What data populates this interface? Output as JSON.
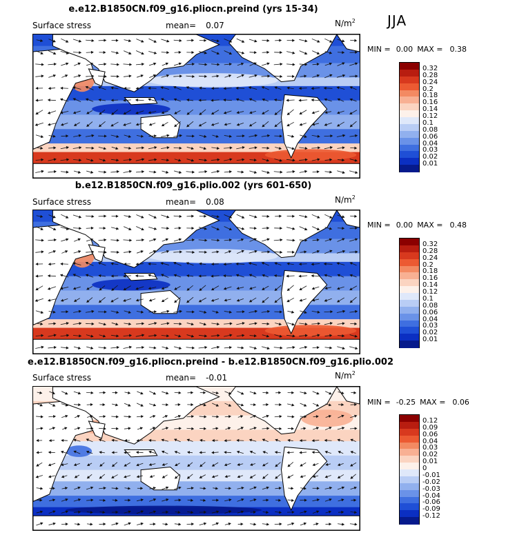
{
  "season": "JJA",
  "colors": {
    "land": "#ffffff",
    "coast": "#000000",
    "arrow": "#111111"
  },
  "panels": [
    {
      "title": "e.e12.B1850CN.f09_g16.pliocn.preind (yrs 15-34)",
      "variable": "Surface stress",
      "mean_label": "mean=",
      "mean_value": "0.07",
      "units": "N/m",
      "units_exp": "2",
      "min_label": "MIN =",
      "min_value": "0.00",
      "max_label": "MAX =",
      "max_value": "0.38",
      "levels": [
        "0.32",
        "0.28",
        "0.24",
        "0.2",
        "0.18",
        "0.16",
        "0.14",
        "0.12",
        "0.1",
        "0.08",
        "0.06",
        "0.04",
        "0.03",
        "0.02",
        "0.01"
      ],
      "colorbar": [
        "#8b0000",
        "#b81d10",
        "#d8391e",
        "#ec5a32",
        "#f38a62",
        "#f8b093",
        "#fbd4c1",
        "#fdf1ea",
        "#dfe8fa",
        "#b9cdf5",
        "#91b0ee",
        "#6a92e8",
        "#3f6fe0",
        "#1f4fd6",
        "#0b2fc2",
        "#061a8c"
      ],
      "field_style": "base"
    },
    {
      "title": "b.e12.B1850CN.f09_g16.plio.002 (yrs 601-650)",
      "variable": "Surface stress",
      "mean_label": "mean=",
      "mean_value": "0.08",
      "units": "N/m",
      "units_exp": "2",
      "min_label": "MIN =",
      "min_value": "0.00",
      "max_label": "MAX =",
      "max_value": "0.48",
      "levels": [
        "0.32",
        "0.28",
        "0.24",
        "0.2",
        "0.18",
        "0.16",
        "0.14",
        "0.12",
        "0.1",
        "0.08",
        "0.06",
        "0.04",
        "0.03",
        "0.02",
        "0.01"
      ],
      "colorbar": [
        "#8b0000",
        "#b81d10",
        "#d8391e",
        "#ec5a32",
        "#f38a62",
        "#f8b093",
        "#fbd4c1",
        "#fdf1ea",
        "#dfe8fa",
        "#b9cdf5",
        "#91b0ee",
        "#6a92e8",
        "#3f6fe0",
        "#1f4fd6",
        "#0b2fc2",
        "#061a8c"
      ],
      "field_style": "base"
    },
    {
      "title": "e.e12.B1850CN.f09_g16.pliocn.preind - b.e12.B1850CN.f09_g16.plio.002",
      "variable": "Surface stress",
      "mean_label": "mean=",
      "mean_value": "-0.01",
      "units": "N/m",
      "units_exp": "2",
      "min_label": "MIN =",
      "min_value": "-0.25",
      "max_label": "MAX =",
      "max_value": "0.06",
      "levels": [
        "0.12",
        "0.09",
        "0.06",
        "0.04",
        "0.03",
        "0.02",
        "0.01",
        "0",
        "-0.01",
        "-0.02",
        "-0.03",
        "-0.04",
        "-0.06",
        "-0.09",
        "-0.12"
      ],
      "colorbar": [
        "#8b0000",
        "#b81d10",
        "#d8391e",
        "#ec5a32",
        "#f38a62",
        "#f8b093",
        "#fbd4c1",
        "#fdf1ea",
        "#dfe8fa",
        "#b9cdf5",
        "#91b0ee",
        "#6a92e8",
        "#3f6fe0",
        "#1f4fd6",
        "#0b2fc2",
        "#061a8c"
      ],
      "field_style": "diff"
    }
  ],
  "chart_data": [
    {
      "type": "heatmap",
      "title": "e.e12.B1850CN.f09_g16.pliocn.preind (yrs 15-34)",
      "variable": "Surface stress",
      "units": "N/m2",
      "season": "JJA",
      "mean": 0.07,
      "min": 0.0,
      "max": 0.38,
      "contour_levels": [
        0.01,
        0.02,
        0.03,
        0.04,
        0.06,
        0.08,
        0.1,
        0.12,
        0.14,
        0.16,
        0.18,
        0.2,
        0.24,
        0.28,
        0.32
      ],
      "overlay": "wind stress vectors"
    },
    {
      "type": "heatmap",
      "title": "b.e12.B1850CN.f09_g16.plio.002 (yrs 601-650)",
      "variable": "Surface stress",
      "units": "N/m2",
      "season": "JJA",
      "mean": 0.08,
      "min": 0.0,
      "max": 0.48,
      "contour_levels": [
        0.01,
        0.02,
        0.03,
        0.04,
        0.06,
        0.08,
        0.1,
        0.12,
        0.14,
        0.16,
        0.18,
        0.2,
        0.24,
        0.28,
        0.32
      ],
      "overlay": "wind stress vectors"
    },
    {
      "type": "heatmap",
      "title": "e.e12.B1850CN.f09_g16.pliocn.preind - b.e12.B1850CN.f09_g16.plio.002",
      "variable": "Surface stress",
      "units": "N/m2",
      "season": "JJA",
      "mean": -0.01,
      "min": -0.25,
      "max": 0.06,
      "contour_levels": [
        -0.12,
        -0.09,
        -0.06,
        -0.04,
        -0.03,
        -0.02,
        -0.01,
        0,
        0.01,
        0.02,
        0.03,
        0.04,
        0.06,
        0.09,
        0.12
      ],
      "overlay": "wind stress difference vectors"
    }
  ]
}
